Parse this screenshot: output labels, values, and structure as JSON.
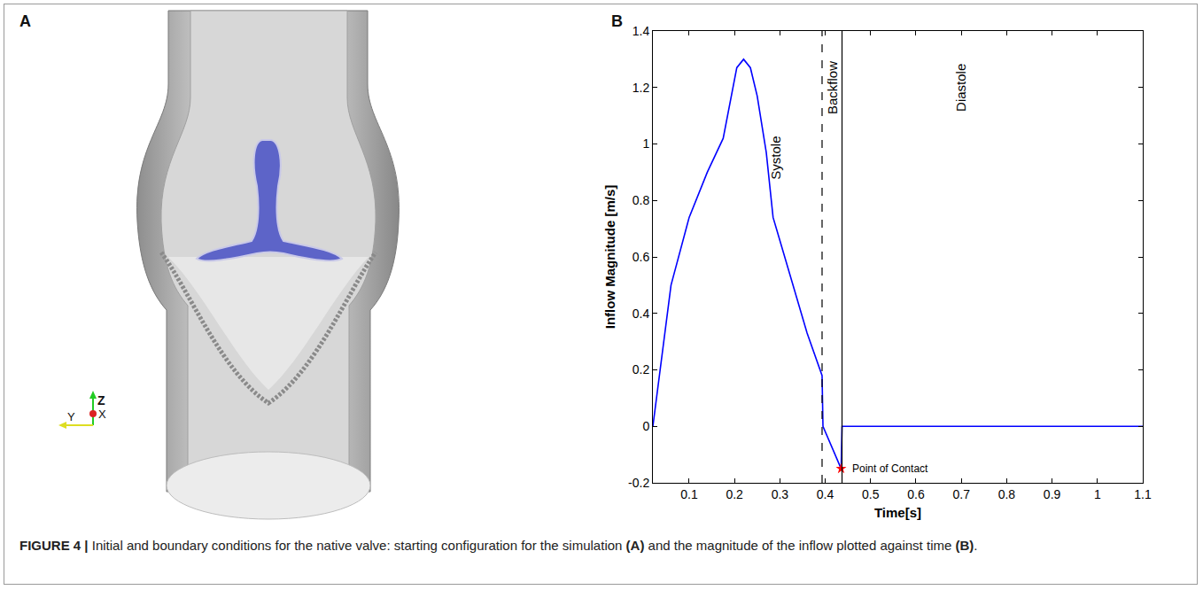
{
  "chart_data": {
    "type": "line",
    "xlabel": "Time[s]",
    "ylabel": "Inflow Magnitude [m/s]",
    "x": [
      0.02,
      0.06,
      0.1,
      0.14,
      0.175,
      0.19,
      0.205,
      0.22,
      0.235,
      0.25,
      0.27,
      0.285,
      0.32,
      0.36,
      0.393,
      0.395,
      0.435,
      0.437,
      1.1
    ],
    "values": [
      0,
      0.5,
      0.74,
      0.9,
      1.02,
      1.15,
      1.27,
      1.3,
      1.27,
      1.17,
      0.97,
      0.74,
      0.55,
      0.33,
      0.18,
      0.0,
      -0.15,
      0,
      0
    ],
    "color": "#0000ff",
    "xlim": [
      0.02,
      1.1
    ],
    "ylim": [
      -0.2,
      1.4
    ],
    "xticks": [
      0.1,
      0.2,
      0.3,
      0.4,
      0.5,
      0.6,
      0.7,
      0.8,
      0.9,
      1,
      1.1
    ],
    "yticks": [
      -0.2,
      0,
      0.2,
      0.4,
      0.6,
      0.8,
      1,
      1.2,
      1.4
    ],
    "grid": false,
    "annotations": [
      {
        "text": "Systole",
        "x": 0.29,
        "y": 0.95
      },
      {
        "text": "Backflow",
        "x": 0.415,
        "y": 1.2
      },
      {
        "text": "Diastole",
        "x": 0.7,
        "y": 1.2
      }
    ],
    "vlines": [
      {
        "x": 0.393,
        "line_style": "dash"
      },
      {
        "x": 0.437,
        "line_style": "solid"
      }
    ],
    "highlight": {
      "x": 0.435,
      "y": -0.15,
      "label": "Point of Contact",
      "color": "#ff0000",
      "marker": "star"
    }
  },
  "panel_labels": [
    "A",
    "B"
  ],
  "panel_a": {
    "axis_labels": {
      "z": "Z",
      "y": "Y",
      "x": "X"
    }
  },
  "caption": [
    {
      "text": "FIGURE 4 | ",
      "bold": true
    },
    {
      "text": "Initial and boundary conditions for the native valve: starting configuration for the simulation ",
      "bold": false
    },
    {
      "text": "(A)",
      "bold": true
    },
    {
      "text": " and the magnitude of the inflow plotted against time ",
      "bold": false
    },
    {
      "text": "(B)",
      "bold": true
    },
    {
      "text": ".",
      "bold": false
    }
  ]
}
